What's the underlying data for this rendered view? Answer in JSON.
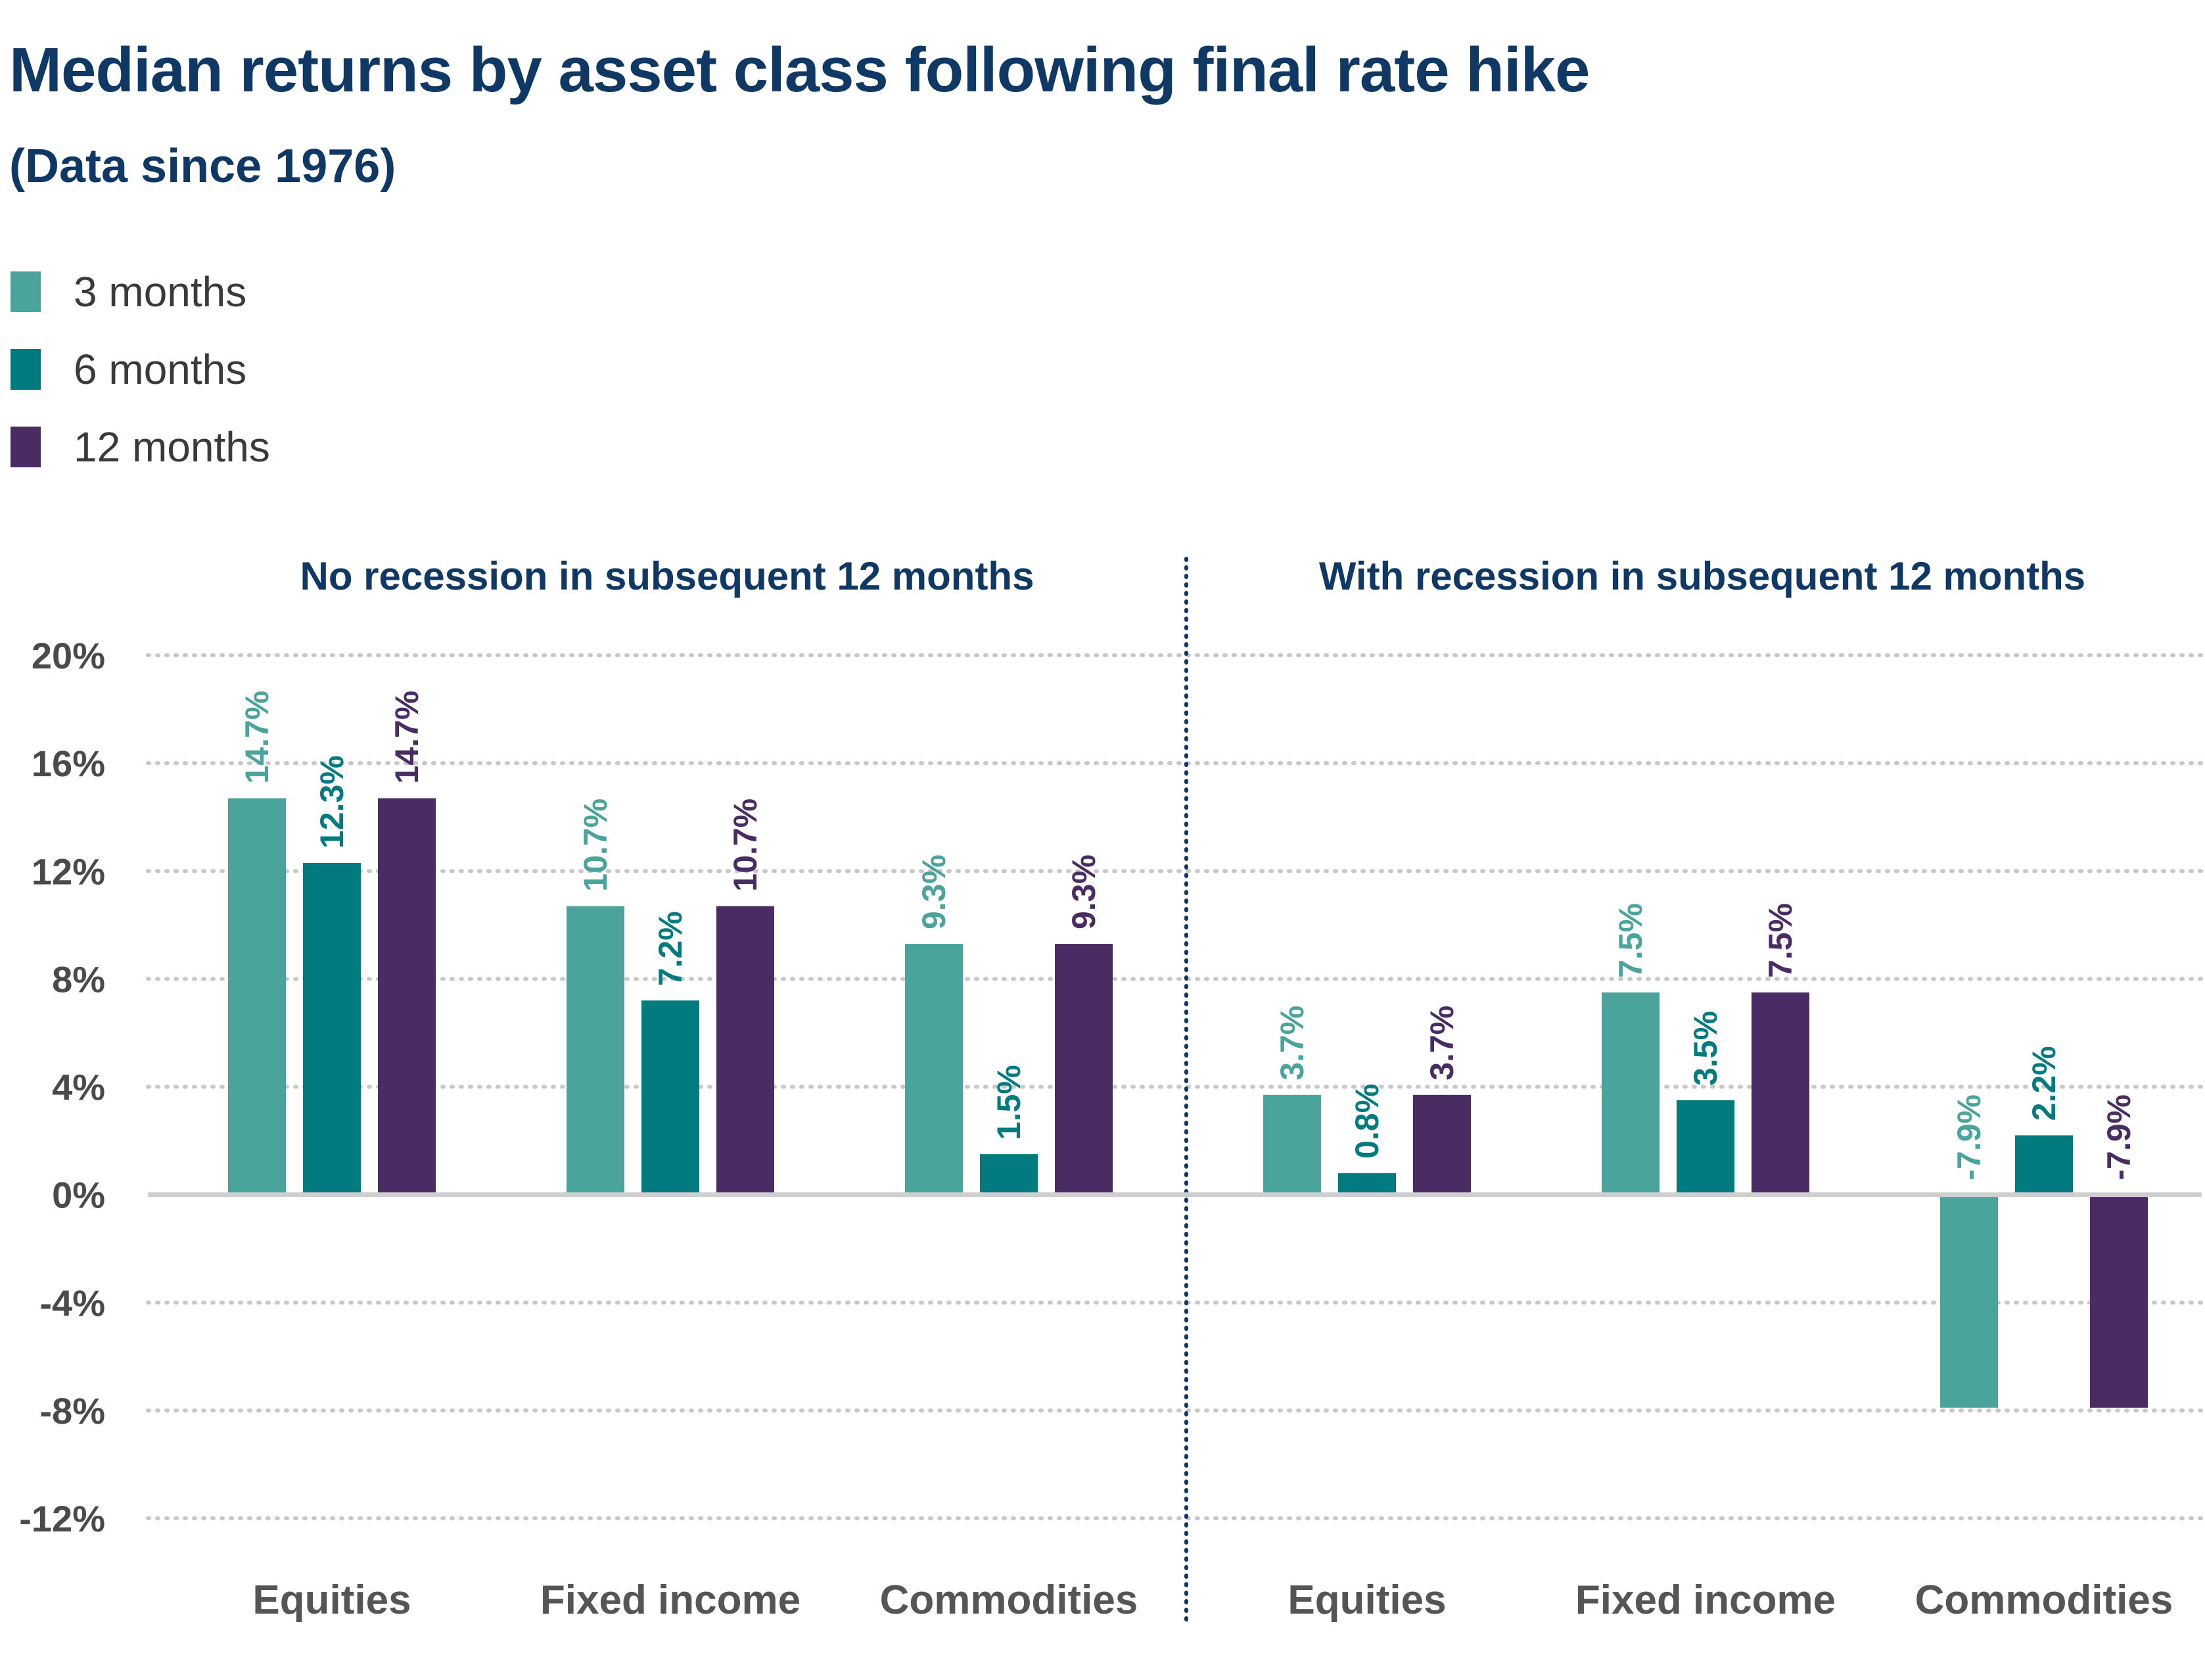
{
  "title": "Median returns by asset class following final rate hike",
  "subtitle": "(Data since 1976)",
  "legend": [
    {
      "label": "3 months",
      "color": "#4aa49b"
    },
    {
      "label": "6 months",
      "color": "#017a80"
    },
    {
      "label": "12 months",
      "color": "#482c63"
    }
  ],
  "chart_data": {
    "type": "bar",
    "title": "Median returns by asset class following final rate hike",
    "subtitle": "(Data since 1976)",
    "ylim": [
      -12,
      20
    ],
    "yticks": [
      "20%",
      "16%",
      "12%",
      "8%",
      "4%",
      "0%",
      "-4%",
      "-8%",
      "-12%"
    ],
    "ytick_values": [
      20,
      16,
      12,
      8,
      4,
      0,
      -4,
      -8,
      -12
    ],
    "grid": true,
    "legend_position": "top-left",
    "series_names": [
      "3 months",
      "6 months",
      "12 months"
    ],
    "series_colors": [
      "#4aa49b",
      "#017a80",
      "#482c63"
    ],
    "panels": [
      {
        "title": "No recession in subsequent 12 months",
        "categories": [
          "Equities",
          "Fixed income",
          "Commodities"
        ],
        "series": [
          {
            "name": "3 months",
            "values": [
              14.7,
              10.7,
              9.3
            ],
            "labels": [
              "14.7%",
              "10.7%",
              "9.3%"
            ]
          },
          {
            "name": "6 months",
            "values": [
              12.3,
              7.2,
              1.5
            ],
            "labels": [
              "12.3%",
              "7.2%",
              "1.5%"
            ]
          },
          {
            "name": "12 months",
            "values": [
              14.7,
              10.7,
              9.3
            ],
            "labels": [
              "14.7%",
              "10.7%",
              "9.3%"
            ]
          }
        ]
      },
      {
        "title": "With recession in subsequent 12 months",
        "categories": [
          "Equities",
          "Fixed income",
          "Commodities"
        ],
        "series": [
          {
            "name": "3 months",
            "values": [
              3.7,
              7.5,
              -7.9
            ],
            "labels": [
              "3.7%",
              "7.5%",
              "-7.9%"
            ]
          },
          {
            "name": "6 months",
            "values": [
              0.8,
              3.5,
              2.2
            ],
            "labels": [
              "0.8%",
              "3.5%",
              "2.2%"
            ]
          },
          {
            "name": "12 months",
            "values": [
              3.7,
              7.5,
              -7.9
            ],
            "labels": [
              "3.7%",
              "7.5%",
              "-7.9%"
            ]
          }
        ]
      }
    ]
  }
}
